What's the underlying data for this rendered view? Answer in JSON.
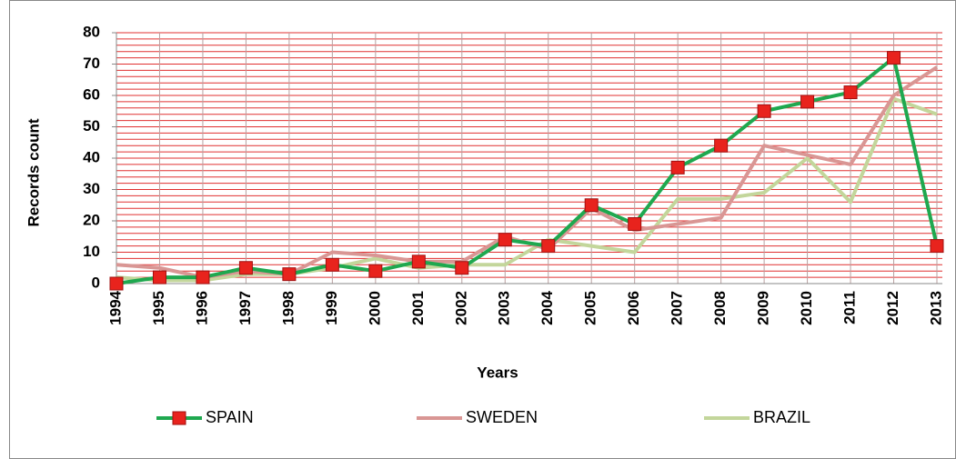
{
  "chart_data": {
    "type": "line",
    "x_label": "Years",
    "y_label": "Records count",
    "categories": [
      "1994",
      "1995",
      "1996",
      "1997",
      "1998",
      "1999",
      "2000",
      "2001",
      "2002",
      "2003",
      "2004",
      "2005",
      "2006",
      "2007",
      "2008",
      "2009",
      "2010",
      "2011",
      "2012",
      "2013"
    ],
    "series": [
      {
        "name": "SPAIN",
        "color": "#1fa84f",
        "marker_color": "#e8231d",
        "values": [
          0,
          2,
          2,
          5,
          3,
          6,
          4,
          7,
          5,
          14,
          12,
          25,
          19,
          37,
          44,
          55,
          58,
          61,
          72,
          12
        ]
      },
      {
        "name": "SWEDEN",
        "color": "#d99694",
        "values": [
          6,
          5,
          2,
          4,
          3,
          10,
          9,
          7,
          7,
          15,
          11,
          24,
          17,
          19,
          21,
          44,
          41,
          38,
          60,
          69
        ]
      },
      {
        "name": "BRAZIL",
        "color": "#c3d69b",
        "values": [
          2,
          1,
          1,
          3,
          3,
          5,
          8,
          5,
          6,
          6,
          14,
          12,
          10,
          27,
          27,
          29,
          40,
          26,
          59,
          54
        ]
      }
    ],
    "ylim": [
      0,
      80
    ],
    "yticks": [
      0,
      10,
      20,
      30,
      40,
      50,
      60,
      70,
      80
    ],
    "yminor": 2,
    "grid": true,
    "grid_color": "#e03030",
    "legend": "bottom"
  }
}
